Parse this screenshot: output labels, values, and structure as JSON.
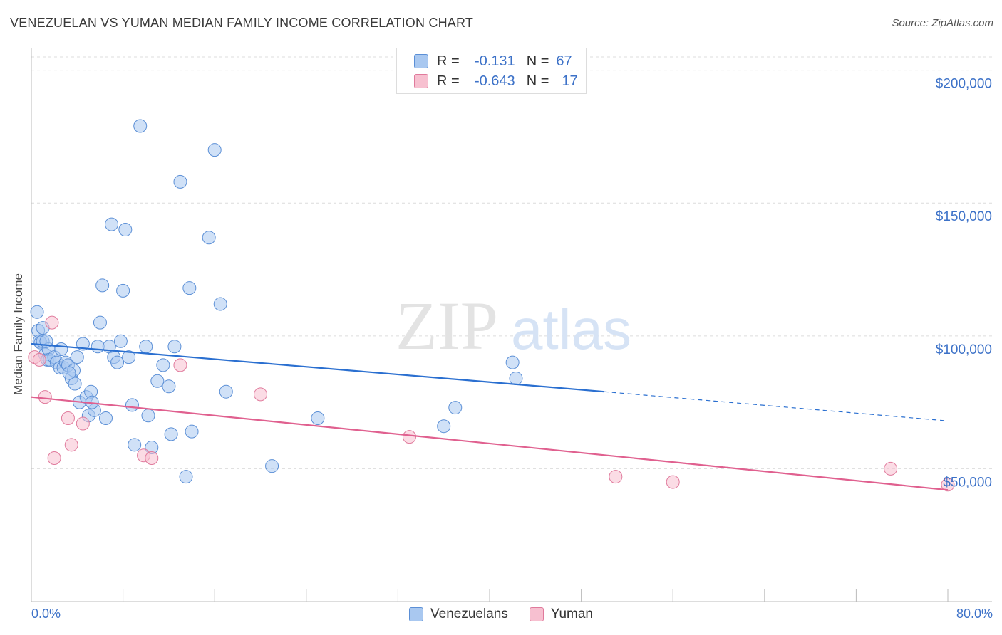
{
  "header": {
    "title": "VENEZUELAN VS YUMAN MEDIAN FAMILY INCOME CORRELATION CHART",
    "source": "Source: ZipAtlas.com"
  },
  "legend_top": {
    "rows": [
      {
        "r_label": "R =",
        "r_value": "-0.131",
        "n_label": "N =",
        "n_value": "67",
        "color": "#a9c8f0",
        "border": "#5b8fd6"
      },
      {
        "r_label": "R =",
        "r_value": "-0.643",
        "n_label": "N =",
        "n_value": "17",
        "color": "#f7c0d0",
        "border": "#e07a9c"
      }
    ]
  },
  "legend_bottom": {
    "items": [
      {
        "label": "Venezuelans",
        "color": "#a9c8f0",
        "border": "#5b8fd6"
      },
      {
        "label": "Yuman",
        "color": "#f7c0d0",
        "border": "#e07a9c"
      }
    ]
  },
  "chart_data": {
    "type": "scatter",
    "xlabel": "",
    "ylabel": "Median Family Income",
    "x_tick_labels": [
      "0.0%",
      "80.0%"
    ],
    "y_tick_labels": [
      "$50,000",
      "$100,000",
      "$150,000",
      "$200,000"
    ],
    "xlim": [
      0,
      80
    ],
    "ylim": [
      0,
      205000
    ],
    "y_ticks": [
      50000,
      100000,
      150000,
      200000
    ],
    "grid": "horizontal dashed",
    "watermark": "ZIPatlas",
    "series": [
      {
        "name": "Venezuelans",
        "color": "#a9c8f0",
        "edge": "#5b8fd6",
        "trend": {
          "x0": 0,
          "y0": 97000,
          "x1": 50,
          "y1": 79000,
          "dash_to_x": 80,
          "dash_to_y": 68000,
          "color": "#2a6fd0"
        },
        "points": [
          [
            0.5,
            109000
          ],
          [
            0.6,
            102000
          ],
          [
            0.7,
            98000
          ],
          [
            0.8,
            97500
          ],
          [
            1.0,
            103000
          ],
          [
            1.0,
            98000
          ],
          [
            1.2,
            93000
          ],
          [
            1.4,
            91000
          ],
          [
            1.5,
            95000
          ],
          [
            1.6,
            91000
          ],
          [
            2.0,
            92000
          ],
          [
            2.2,
            90000
          ],
          [
            2.5,
            88000
          ],
          [
            2.6,
            95000
          ],
          [
            2.8,
            88000
          ],
          [
            3.0,
            90000
          ],
          [
            3.2,
            89000
          ],
          [
            3.5,
            84000
          ],
          [
            3.7,
            87000
          ],
          [
            3.8,
            82000
          ],
          [
            4.0,
            92000
          ],
          [
            4.2,
            75000
          ],
          [
            4.5,
            97000
          ],
          [
            4.8,
            77000
          ],
          [
            5.0,
            70000
          ],
          [
            5.2,
            79000
          ],
          [
            5.5,
            72000
          ],
          [
            5.8,
            96000
          ],
          [
            6.0,
            105000
          ],
          [
            6.2,
            119000
          ],
          [
            6.5,
            69000
          ],
          [
            6.8,
            96000
          ],
          [
            7.0,
            142000
          ],
          [
            7.2,
            92000
          ],
          [
            7.5,
            90000
          ],
          [
            7.8,
            98000
          ],
          [
            8.0,
            117000
          ],
          [
            8.2,
            140000
          ],
          [
            8.5,
            92000
          ],
          [
            8.8,
            74000
          ],
          [
            9.0,
            59000
          ],
          [
            9.5,
            179000
          ],
          [
            10.0,
            96000
          ],
          [
            10.2,
            70000
          ],
          [
            10.5,
            58000
          ],
          [
            11.0,
            83000
          ],
          [
            11.5,
            89000
          ],
          [
            12.0,
            81000
          ],
          [
            12.2,
            63000
          ],
          [
            12.5,
            96000
          ],
          [
            13.0,
            158000
          ],
          [
            13.5,
            47000
          ],
          [
            13.8,
            118000
          ],
          [
            14.0,
            64000
          ],
          [
            15.5,
            137000
          ],
          [
            16.0,
            170000
          ],
          [
            16.5,
            112000
          ],
          [
            17.0,
            79000
          ],
          [
            21.0,
            51000
          ],
          [
            25.0,
            69000
          ],
          [
            36.0,
            66000
          ],
          [
            37.0,
            73000
          ],
          [
            42.0,
            90000
          ],
          [
            42.3,
            84000
          ],
          [
            1.3,
            98000
          ],
          [
            3.3,
            86000
          ],
          [
            5.3,
            75000
          ]
        ]
      },
      {
        "name": "Yuman",
        "color": "#f7c0d0",
        "edge": "#e07a9c",
        "trend": {
          "x0": 0,
          "y0": 77000,
          "x1": 80,
          "y1": 42000,
          "color": "#e0608f"
        },
        "points": [
          [
            0.3,
            92000
          ],
          [
            0.7,
            91000
          ],
          [
            1.2,
            77000
          ],
          [
            1.8,
            105000
          ],
          [
            2.0,
            54000
          ],
          [
            3.2,
            69000
          ],
          [
            3.5,
            59000
          ],
          [
            4.5,
            67000
          ],
          [
            9.8,
            55000
          ],
          [
            10.5,
            54000
          ],
          [
            13.0,
            89000
          ],
          [
            20.0,
            78000
          ],
          [
            33.0,
            62000
          ],
          [
            51.0,
            47000
          ],
          [
            56.0,
            45000
          ],
          [
            75.0,
            50000
          ],
          [
            80.0,
            44000
          ]
        ]
      }
    ]
  }
}
